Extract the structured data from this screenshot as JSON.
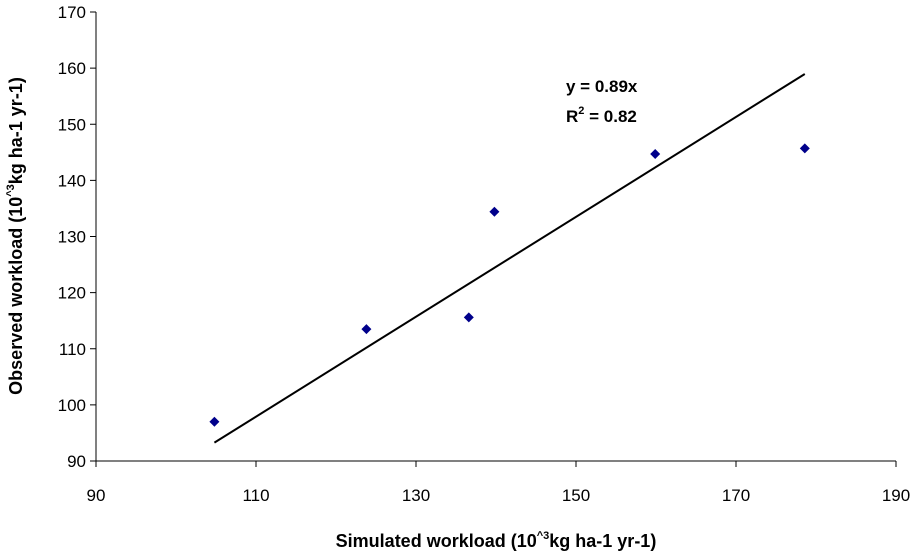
{
  "chart_data": {
    "type": "scatter",
    "title": "",
    "xlabel": {
      "prefix": "Simulated workload (10",
      "sup": "^3",
      "suffix": "kg ha-1 yr-1)"
    },
    "ylabel": {
      "prefix": "Observed workload (10",
      "sup": "^3",
      "suffix": "kg ha-1 yr-1)"
    },
    "xlim": [
      90,
      190
    ],
    "ylim": [
      90,
      170
    ],
    "xticks": [
      "90",
      "110",
      "130",
      "150",
      "170",
      "190"
    ],
    "yticks": [
      "90",
      "100",
      "110",
      "120",
      "130",
      "140",
      "150",
      "160",
      "170"
    ],
    "grid": false,
    "legend": "none",
    "marker_color": "#00008B",
    "series": [
      {
        "points": [
          {
            "x": 104.8,
            "y": 97.0
          },
          {
            "x": 123.8,
            "y": 113.5
          },
          {
            "x": 136.6,
            "y": 115.6
          },
          {
            "x": 139.8,
            "y": 134.4
          },
          {
            "x": 159.9,
            "y": 144.7
          },
          {
            "x": 178.6,
            "y": 145.7
          }
        ]
      }
    ],
    "trendline": {
      "slope": 0.89,
      "x_start": 104.8,
      "x_end": 178.6,
      "color": "#000000"
    },
    "annotations": {
      "equation": "y = 0.89x",
      "r2_prefix": "R",
      "r2_sup": "2",
      "r2_suffix": " = 0.82"
    }
  }
}
